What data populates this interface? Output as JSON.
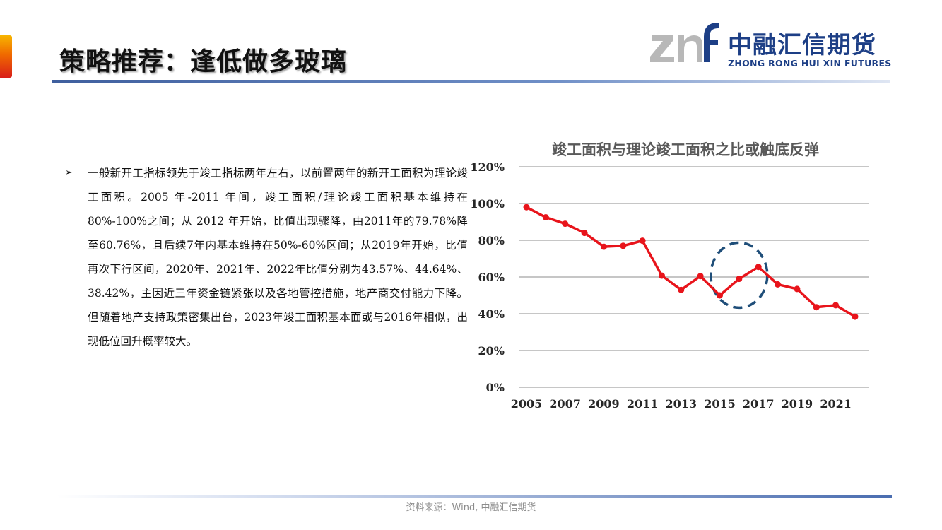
{
  "header": {
    "title": "策略推荐：逢低做多玻璃",
    "logo_cn": "中融汇信期货",
    "logo_en": "ZHONG RONG HUI XIN FUTURES"
  },
  "content": {
    "bullet_marker": "➢",
    "bullet_text": "一般新开工指标领先于竣工指标两年左右，以前置两年的新开工面积为理论竣工面积。2005 年-2011 年间，竣工面积/理论竣工面积基本维持在80%-100%之间；从 2012 年开始，比值出现骤降，由2011年的79.78%降至60.76%，且后续7年内基本维持在50%-60%区间；从2019年开始，比值再次下行区间，2020年、2021年、2022年比值分别为43.57%、44.64%、38.42%，主因近三年资金链紧张以及各地管控措施，地产商交付能力下降。但随着地产支持政策密集出台，2023年竣工面积基本面或与2016年相似，出现低位回升概率较大。"
  },
  "chart_data": {
    "type": "line",
    "title": "竣工面积与理论竣工面积之比或触底反弹",
    "x": [
      2005,
      2006,
      2007,
      2008,
      2009,
      2010,
      2011,
      2012,
      2013,
      2014,
      2015,
      2016,
      2017,
      2018,
      2019,
      2020,
      2021,
      2022
    ],
    "values": [
      98,
      92.5,
      89,
      84,
      76.5,
      77,
      79.78,
      60.76,
      53,
      60.5,
      50,
      59,
      65.5,
      56,
      53.5,
      43.57,
      44.64,
      38.42
    ],
    "x_tick_labels": [
      "2005",
      "2007",
      "2009",
      "2011",
      "2013",
      "2015",
      "2017",
      "2019",
      "2021"
    ],
    "y_tick_labels": [
      "0%",
      "20%",
      "40%",
      "60%",
      "80%",
      "100%",
      "120%"
    ],
    "ylim": [
      0,
      120
    ],
    "grid": true,
    "line_color": "#e8141b",
    "annotation": {
      "type": "dashed-ellipse",
      "center": [
        2016,
        61
      ],
      "color": "#1f4e79"
    }
  },
  "footer": {
    "source": "资料来源：Wind, 中融汇信期货"
  }
}
